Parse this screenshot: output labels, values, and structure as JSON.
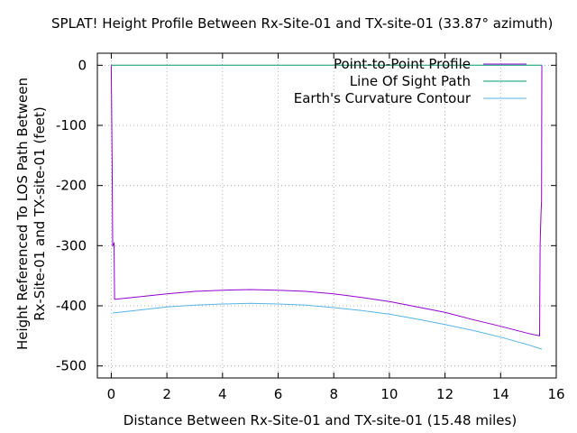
{
  "chart_data": {
    "type": "line",
    "title": "SPLAT! Height Profile Between Rx-Site-01 and TX-site-01 (33.87° azimuth)",
    "xlabel": "Distance Between Rx-Site-01 and TX-site-01 (15.48 miles)",
    "ylabel_line1": "Height Referenced To LOS Path Between",
    "ylabel_line2": "Rx-Site-01 and TX-site-01 (feet)",
    "xlim": [
      -0.5,
      16
    ],
    "ylim": [
      -520,
      20
    ],
    "xticks": [
      0,
      2,
      4,
      6,
      8,
      10,
      12,
      14,
      16
    ],
    "yticks": [
      0,
      -100,
      -200,
      -300,
      -400,
      -500
    ],
    "grid": true,
    "legend_position": "top-right",
    "series": [
      {
        "name": "Point-to-Point Profile",
        "color": "#9400d3",
        "x": [
          0,
          0.02,
          0.03,
          0.05,
          0.1,
          0.12,
          0.15,
          1,
          2,
          3,
          4,
          5,
          6,
          7,
          8,
          9,
          10,
          11,
          12,
          13,
          14,
          15,
          15.4,
          15.42,
          15.45,
          15.47,
          15.48
        ],
        "y": [
          0,
          -100,
          -150,
          -300,
          -296,
          -389,
          -389,
          -385,
          -380,
          -376,
          -374,
          -373,
          -374,
          -376,
          -380,
          -386,
          -393,
          -402,
          -411,
          -423,
          -434,
          -446,
          -450,
          -300,
          -250,
          -225,
          0
        ]
      },
      {
        "name": "Line Of Sight Path",
        "color": "#009e73",
        "x": [
          0,
          15.48
        ],
        "y": [
          0,
          0
        ]
      },
      {
        "name": "Earth's Curvature Contour",
        "color": "#56b4e9",
        "x": [
          0.05,
          1,
          2,
          3,
          4,
          5,
          6,
          7,
          8,
          9,
          10,
          11,
          12,
          13,
          14,
          15,
          15.48
        ],
        "y": [
          -412,
          -407,
          -402,
          -399,
          -397,
          -396,
          -397,
          -399,
          -403,
          -408,
          -414,
          -422,
          -431,
          -441,
          -452,
          -465,
          -472
        ]
      }
    ]
  }
}
